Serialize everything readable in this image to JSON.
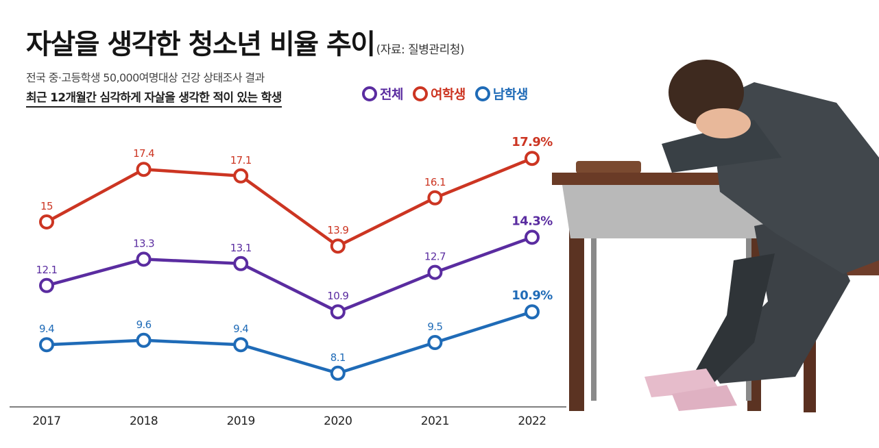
{
  "header": {
    "title": "자살을 생각한 청소년 비율 추이",
    "source": "(자료: 질병관리청)",
    "subtitle": "전국 중·고등학생 50,000여명대상 건강 상태조사 결과",
    "description": "최근 12개월간 심각하게 자살을 생각한 적이 있는 학생"
  },
  "colors": {
    "total": "#5a2ca0",
    "female": "#cc3522",
    "male": "#1f6bb7",
    "axis": "#555555"
  },
  "illustration": {
    "icon": "sad-student-at-desk-illustration"
  },
  "chart_data": {
    "type": "line",
    "x": [
      "2017",
      "2018",
      "2019",
      "2020",
      "2021",
      "2022"
    ],
    "ylim": [
      7,
      19
    ],
    "legend_position": "top-right",
    "grid": false,
    "series": [
      {
        "key": "total",
        "name": "전체",
        "values": [
          12.1,
          13.3,
          13.1,
          10.9,
          12.7,
          14.3
        ],
        "labels": [
          "12.1",
          "13.3",
          "13.1",
          "10.9",
          "12.7",
          "14.3%"
        ]
      },
      {
        "key": "female",
        "name": "여학생",
        "values": [
          15,
          17.4,
          17.1,
          13.9,
          16.1,
          17.9
        ],
        "labels": [
          "15",
          "17.4",
          "17.1",
          "13.9",
          "16.1",
          "17.9%"
        ]
      },
      {
        "key": "male",
        "name": "남학생",
        "values": [
          9.4,
          9.6,
          9.4,
          8.1,
          9.5,
          10.9
        ],
        "labels": [
          "9.4",
          "9.6",
          "9.4",
          "8.1",
          "9.5",
          "10.9%"
        ]
      }
    ]
  }
}
